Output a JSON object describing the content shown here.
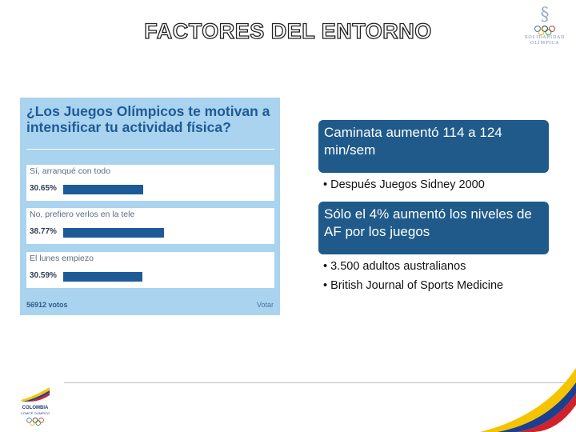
{
  "slide": {
    "title": "FACTORES DEL ENTORNO"
  },
  "logos": {
    "olimpica": {
      "line1": "SOLIDARIDAD",
      "line2": "OLÍMPICA"
    },
    "colombia": {
      "line1": "COLOMBIA",
      "line2": "COMITÉ OLÍMPICO"
    }
  },
  "poll": {
    "question": "¿Los Juegos Olímpicos te motivan a intensificar tu actividad física?",
    "options": [
      {
        "label": "Sí, arranqué con todo",
        "percent": "30.65%",
        "value": 30.65
      },
      {
        "label": "No, prefiero verlos en la tele",
        "percent": "38.77%",
        "value": 38.77
      },
      {
        "label": "El lunes empiezo",
        "percent": "30.59%",
        "value": 30.59
      }
    ],
    "votes": "56912 votos",
    "vote_action": "Votar"
  },
  "callouts": [
    {
      "text": "Caminata aumentó 114 a 124 min/sem"
    },
    {
      "text": "Sólo el 4% aumentó los niveles de AF por los juegos"
    }
  ],
  "bullets": {
    "b1": "• Después Juegos Sidney 2000",
    "b2": "• 3.500 adultos australianos",
    "b3": "• British Journal of Sports Medicine"
  },
  "colors": {
    "poll_bg": "#a9d3ee",
    "poll_blue": "#1d5b98",
    "callout_bg": "#1f5a8a"
  }
}
